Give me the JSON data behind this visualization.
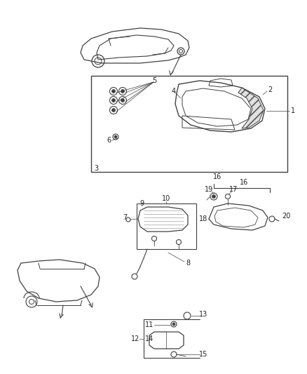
{
  "background_color": "#ffffff",
  "line_color": "#404040",
  "text_color": "#222222",
  "fig_width": 4.38,
  "fig_height": 5.33,
  "dpi": 100
}
